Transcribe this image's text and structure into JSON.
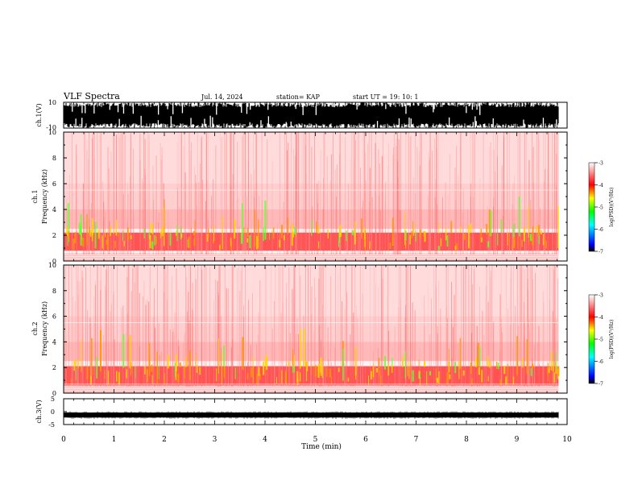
{
  "header": {
    "title": "VLF Spectra",
    "date": "Jul. 14, 2024",
    "station": "station= KAP",
    "start": "start UT =  19: 10: 1"
  },
  "chart_data": [
    {
      "type": "line",
      "name": "ch1-waveform",
      "ylabel": "ch.1(V)",
      "ylim": [
        -10,
        10
      ],
      "yticks": [
        "10",
        "-10"
      ],
      "note_values": "dense saturated broadband waveform spanning roughly -10 to 10 V over 0-9.8 min"
    },
    {
      "type": "heatmap",
      "name": "ch1-spectrogram",
      "ylabel": "ch.1\nFrequency (kHz)",
      "ylim": [
        0,
        10
      ],
      "yticks": [
        "0",
        "2",
        "4",
        "6",
        "8",
        "10"
      ],
      "colorbar": {
        "label": "log(PSD)(V²/Hz)",
        "range": [
          -7,
          -3
        ],
        "ticks": [
          "-3",
          "-4",
          "-5",
          "-6",
          "-7"
        ]
      },
      "strong_band_khz": [
        0.8,
        2.2
      ],
      "hiss_upper_khz": 4
    },
    {
      "type": "heatmap",
      "name": "ch2-spectrogram",
      "ylabel": "ch.2\nFrequency (kHz)",
      "ylim": [
        0,
        10
      ],
      "yticks": [
        "0",
        "2",
        "4",
        "6",
        "8",
        "10"
      ],
      "colorbar": {
        "label": "log(PSD)(V²/Hz)",
        "range": [
          -7,
          -3
        ],
        "ticks": [
          "-3",
          "-4",
          "-5",
          "-6",
          "-7"
        ]
      },
      "strong_band_khz": [
        0.6,
        2.1
      ],
      "hiss_upper_khz": 4
    },
    {
      "type": "line",
      "name": "ch3-waveform",
      "ylabel": "ch.3(V)",
      "ylim": [
        -5,
        5
      ],
      "yticks": [
        "5",
        "0",
        "-5"
      ],
      "level_v": -1.3
    }
  ],
  "xaxis": {
    "label": "Time (min)",
    "range": [
      0,
      10
    ],
    "data_end": 9.83,
    "ticks": [
      "0",
      "1",
      "2",
      "3",
      "4",
      "5",
      "6",
      "7",
      "8",
      "9",
      "10"
    ]
  }
}
